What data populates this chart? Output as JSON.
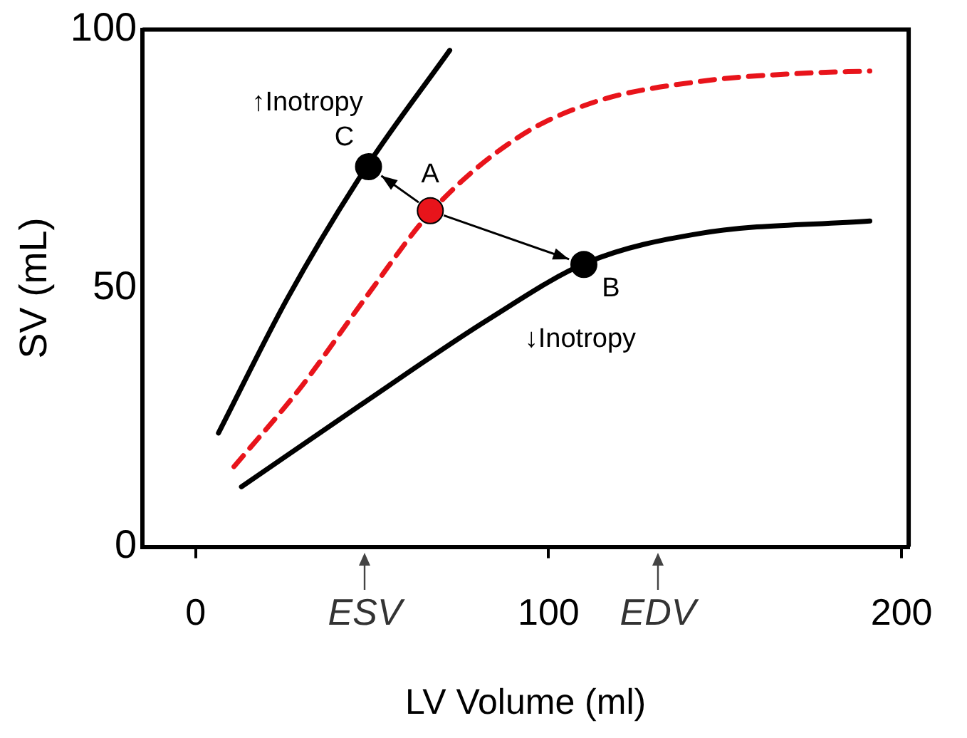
{
  "chart_data": {
    "type": "line",
    "xlabel": "LV Volume (ml)",
    "ylabel": "SV (mL)",
    "xlim": [
      -15,
      202
    ],
    "xticks": [
      0,
      {
        "value": 48,
        "label": "ESV"
      },
      100,
      {
        "value": 131,
        "label": "EDV"
      },
      200
    ],
    "ylim": [
      0,
      100
    ],
    "yticks": [
      0,
      50,
      100
    ],
    "grid": false,
    "legend": false,
    "series": [
      {
        "name": "↑Inotropy",
        "color": "#000000",
        "x": [
          6.5,
          26,
          48,
          72
        ],
        "values": [
          22,
          48,
          73,
          96
        ],
        "line_style": "solid",
        "marker": "none"
      },
      {
        "color": "#e8141b",
        "x": [
          10.9,
          30,
          48,
          67,
          91,
          113,
          143,
          170,
          191
        ],
        "values": [
          15.5,
          31,
          48,
          65,
          79,
          86,
          90,
          91.5,
          92
        ],
        "line_style": "dashed",
        "marker": "none"
      },
      {
        "color": "#000000",
        "x": [
          13,
          48,
          83,
          111,
          143,
          191
        ],
        "values": [
          11.6,
          28,
          44,
          55,
          60.6,
          63
        ],
        "line_style": "solid",
        "marker": "none"
      },
      {
        "type": "scatter",
        "x": [
          49,
          66.5,
          110
        ],
        "values": [
          73.5,
          65,
          54.6
        ],
        "colors": [
          "#000000",
          "#e8141b",
          "#000000"
        ],
        "marker": "circle"
      }
    ],
    "annotations": [
      {
        "text": "C",
        "x": 49,
        "y": 73.5
      },
      {
        "text": "A",
        "x": 66.5,
        "y": 65
      },
      {
        "text": "B",
        "x": 110,
        "y": 54.6
      },
      {
        "text": "↓Inotropy",
        "x": 111,
        "y": 55
      }
    ]
  }
}
